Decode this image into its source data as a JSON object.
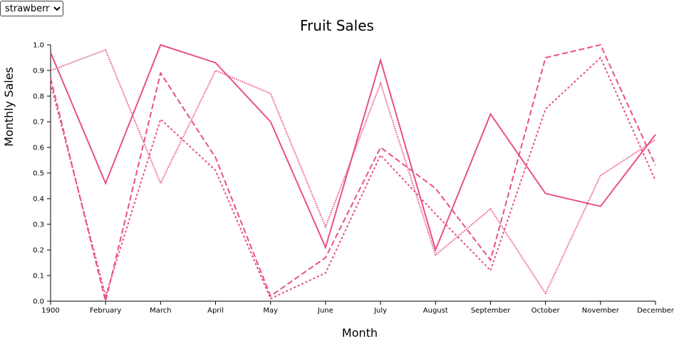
{
  "controls": {
    "fruit_select": {
      "selected": "strawberry",
      "options": [
        "strawberry"
      ]
    }
  },
  "colors": {
    "series": "#e8527f",
    "axis": "#000000"
  },
  "chart_data": {
    "type": "line",
    "title": "Fruit Sales",
    "xlabel": "Month",
    "ylabel": "Monthly Sales",
    "categories": [
      "1900",
      "February",
      "March",
      "April",
      "May",
      "June",
      "July",
      "August",
      "September",
      "October",
      "November",
      "December"
    ],
    "ylim": [
      0,
      1
    ],
    "yticks": [
      "0.0",
      "0.1",
      "0.2",
      "0.3",
      "0.4",
      "0.5",
      "0.6",
      "0.7",
      "0.8",
      "0.9",
      "1.0"
    ],
    "grid": false,
    "legend": "none",
    "series": [
      {
        "style": "solid",
        "values": [
          0.97,
          0.46,
          1.0,
          0.93,
          0.7,
          0.21,
          0.94,
          0.2,
          0.73,
          0.42,
          0.37,
          0.65
        ]
      },
      {
        "style": "dashed",
        "values": [
          0.87,
          0.0,
          0.89,
          0.56,
          0.02,
          0.17,
          0.6,
          0.44,
          0.16,
          0.95,
          1.0,
          0.53
        ]
      },
      {
        "style": "dotted",
        "values": [
          0.85,
          0.02,
          0.71,
          0.51,
          0.01,
          0.11,
          0.57,
          0.34,
          0.12,
          0.75,
          0.95,
          0.47
        ]
      },
      {
        "style": "fine",
        "values": [
          0.9,
          0.98,
          0.46,
          0.9,
          0.81,
          0.29,
          0.85,
          0.18,
          0.36,
          0.03,
          0.49,
          0.63
        ]
      }
    ]
  }
}
